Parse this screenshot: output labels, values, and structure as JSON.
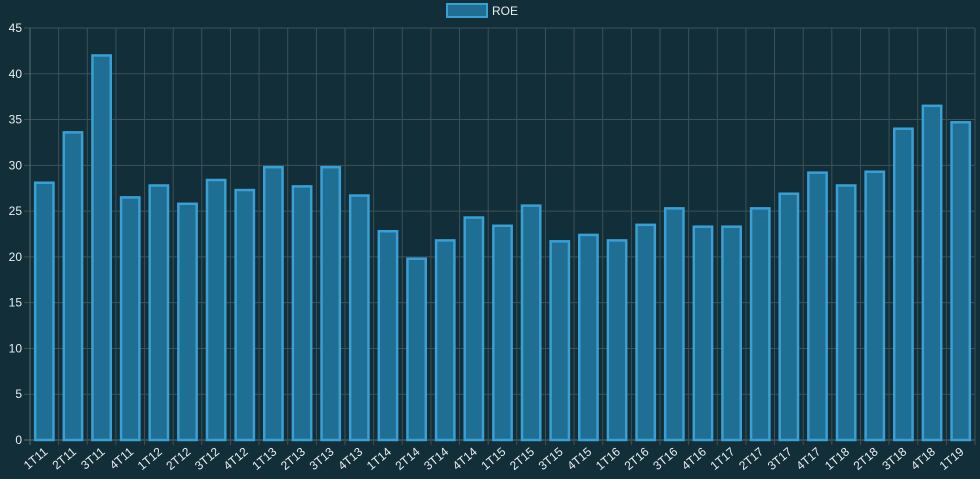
{
  "colors": {
    "background": "#122e38",
    "bar_fill": "#1f6e94",
    "bar_stroke": "#3a9fd3",
    "grid": "#3d5158",
    "text": "#e8eef0"
  },
  "chart_data": {
    "type": "bar",
    "title": "",
    "xlabel": "",
    "ylabel": "",
    "legend_position": "top-center",
    "grid": true,
    "ylim": [
      0,
      45
    ],
    "yticks": [
      0,
      5,
      10,
      15,
      20,
      25,
      30,
      35,
      40,
      45
    ],
    "categories": [
      "1T11",
      "2T11",
      "3T11",
      "4T11",
      "1T12",
      "2T12",
      "3T12",
      "4T12",
      "1T13",
      "2T13",
      "3T13",
      "4T13",
      "1T14",
      "2T14",
      "3T14",
      "4T14",
      "1T15",
      "2T15",
      "3T15",
      "4T15",
      "1T16",
      "2T16",
      "3T16",
      "4T16",
      "1T17",
      "2T17",
      "3T17",
      "4T17",
      "1T18",
      "2T18",
      "3T18",
      "4T18",
      "1T19"
    ],
    "series": [
      {
        "name": "ROE",
        "values": [
          28.1,
          33.6,
          42.0,
          26.5,
          27.8,
          25.8,
          28.4,
          27.3,
          29.8,
          27.7,
          29.8,
          26.7,
          22.8,
          19.8,
          21.8,
          24.3,
          23.4,
          25.6,
          21.7,
          22.4,
          21.8,
          23.5,
          25.3,
          23.3,
          23.3,
          25.3,
          26.9,
          29.2,
          27.8,
          29.3,
          34.0,
          36.5,
          34.7
        ]
      }
    ]
  }
}
